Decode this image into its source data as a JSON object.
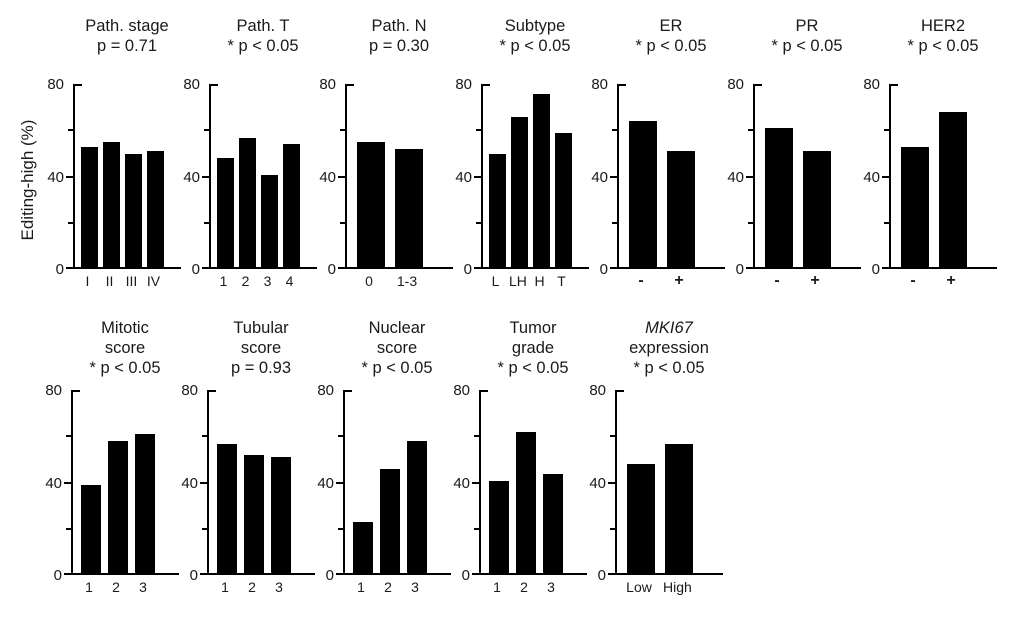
{
  "figure": {
    "bar_color": "#000000",
    "axis_color": "#000000",
    "text_color": "#1a1a1a",
    "background": "#ffffff"
  },
  "chart_data": {
    "type": "bar",
    "ylabel": "Editing-high (%)",
    "ylim": [
      0,
      80
    ],
    "yticks_labeled": [
      0,
      40,
      80
    ],
    "yticks_minor": [
      20,
      60
    ],
    "grid": false,
    "legend": "none",
    "panels": [
      {
        "title_lines": [
          "Path. stage"
        ],
        "pvalue": "p = 0.71",
        "categories": [
          "I",
          "II",
          "III",
          "IV"
        ],
        "values": [
          52,
          54,
          49,
          50
        ]
      },
      {
        "title_lines": [
          "Path. T"
        ],
        "pvalue": "* p < 0.05",
        "categories": [
          "1",
          "2",
          "3",
          "4"
        ],
        "values": [
          47,
          56,
          40,
          53
        ]
      },
      {
        "title_lines": [
          "Path. N"
        ],
        "pvalue": "p = 0.30",
        "categories": [
          "0",
          "1-3"
        ],
        "values": [
          54,
          51
        ]
      },
      {
        "title_lines": [
          "Subtype"
        ],
        "pvalue": "* p < 0.05",
        "categories": [
          "L",
          "LH",
          "H",
          "T"
        ],
        "values": [
          49,
          65,
          75,
          58
        ]
      },
      {
        "title_lines": [
          "ER"
        ],
        "pvalue": "* p < 0.05",
        "categories": [
          "-",
          "+"
        ],
        "values": [
          63,
          50
        ]
      },
      {
        "title_lines": [
          "PR"
        ],
        "pvalue": "* p < 0.05",
        "categories": [
          "-",
          "+"
        ],
        "values": [
          60,
          50
        ]
      },
      {
        "title_lines": [
          "HER2"
        ],
        "pvalue": "* p < 0.05",
        "categories": [
          "-",
          "+"
        ],
        "values": [
          52,
          67
        ]
      },
      {
        "title_lines": [
          "Mitotic",
          "score"
        ],
        "pvalue": "* p < 0.05",
        "categories": [
          "1",
          "2",
          "3"
        ],
        "values": [
          38,
          57,
          60
        ]
      },
      {
        "title_lines": [
          "Tubular",
          "score"
        ],
        "pvalue": "p = 0.93",
        "categories": [
          "1",
          "2",
          "3"
        ],
        "values": [
          56,
          51,
          50
        ]
      },
      {
        "title_lines": [
          "Nuclear",
          "score"
        ],
        "pvalue": "* p < 0.05",
        "categories": [
          "1",
          "2",
          "3"
        ],
        "values": [
          22,
          45,
          57
        ]
      },
      {
        "title_lines": [
          "Tumor",
          "grade"
        ],
        "pvalue": "* p < 0.05",
        "categories": [
          "1",
          "2",
          "3"
        ],
        "values": [
          40,
          61,
          43
        ]
      },
      {
        "title_lines": [
          "MKI67",
          "expression"
        ],
        "pvalue": "* p < 0.05",
        "categories": [
          "Low",
          "High"
        ],
        "values": [
          47,
          56
        ],
        "italic_line": 0
      }
    ]
  }
}
